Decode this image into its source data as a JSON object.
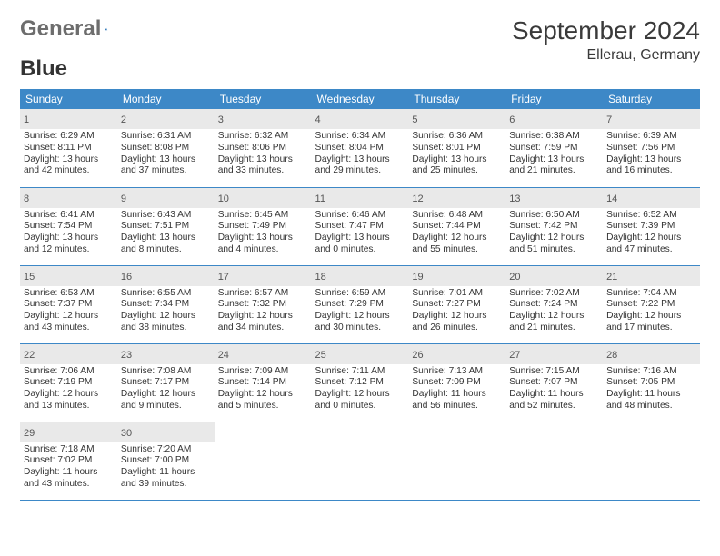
{
  "brand": {
    "part1": "General",
    "part2": "Blue"
  },
  "title": "September 2024",
  "location": "Ellerau, Germany",
  "colors": {
    "header_bg": "#3d88c7",
    "header_text": "#ffffff",
    "daynum_bg": "#e9e9e9",
    "border": "#3d88c7",
    "logo_gray": "#6d6d6d",
    "logo_blue": "#2f78b9",
    "page_bg": "#ffffff",
    "text": "#333333"
  },
  "fonts": {
    "body_pt": 10,
    "daynum_pt": 11,
    "head_pt": 12,
    "title_pt": 28,
    "loc_pt": 16
  },
  "weekdays": [
    "Sunday",
    "Monday",
    "Tuesday",
    "Wednesday",
    "Thursday",
    "Friday",
    "Saturday"
  ],
  "weeks": [
    [
      {
        "d": "1",
        "sr": "6:29 AM",
        "ss": "8:11 PM",
        "dl1": "Daylight: 13 hours",
        "dl2": "and 42 minutes."
      },
      {
        "d": "2",
        "sr": "6:31 AM",
        "ss": "8:08 PM",
        "dl1": "Daylight: 13 hours",
        "dl2": "and 37 minutes."
      },
      {
        "d": "3",
        "sr": "6:32 AM",
        "ss": "8:06 PM",
        "dl1": "Daylight: 13 hours",
        "dl2": "and 33 minutes."
      },
      {
        "d": "4",
        "sr": "6:34 AM",
        "ss": "8:04 PM",
        "dl1": "Daylight: 13 hours",
        "dl2": "and 29 minutes."
      },
      {
        "d": "5",
        "sr": "6:36 AM",
        "ss": "8:01 PM",
        "dl1": "Daylight: 13 hours",
        "dl2": "and 25 minutes."
      },
      {
        "d": "6",
        "sr": "6:38 AM",
        "ss": "7:59 PM",
        "dl1": "Daylight: 13 hours",
        "dl2": "and 21 minutes."
      },
      {
        "d": "7",
        "sr": "6:39 AM",
        "ss": "7:56 PM",
        "dl1": "Daylight: 13 hours",
        "dl2": "and 16 minutes."
      }
    ],
    [
      {
        "d": "8",
        "sr": "6:41 AM",
        "ss": "7:54 PM",
        "dl1": "Daylight: 13 hours",
        "dl2": "and 12 minutes."
      },
      {
        "d": "9",
        "sr": "6:43 AM",
        "ss": "7:51 PM",
        "dl1": "Daylight: 13 hours",
        "dl2": "and 8 minutes."
      },
      {
        "d": "10",
        "sr": "6:45 AM",
        "ss": "7:49 PM",
        "dl1": "Daylight: 13 hours",
        "dl2": "and 4 minutes."
      },
      {
        "d": "11",
        "sr": "6:46 AM",
        "ss": "7:47 PM",
        "dl1": "Daylight: 13 hours",
        "dl2": "and 0 minutes."
      },
      {
        "d": "12",
        "sr": "6:48 AM",
        "ss": "7:44 PM",
        "dl1": "Daylight: 12 hours",
        "dl2": "and 55 minutes."
      },
      {
        "d": "13",
        "sr": "6:50 AM",
        "ss": "7:42 PM",
        "dl1": "Daylight: 12 hours",
        "dl2": "and 51 minutes."
      },
      {
        "d": "14",
        "sr": "6:52 AM",
        "ss": "7:39 PM",
        "dl1": "Daylight: 12 hours",
        "dl2": "and 47 minutes."
      }
    ],
    [
      {
        "d": "15",
        "sr": "6:53 AM",
        "ss": "7:37 PM",
        "dl1": "Daylight: 12 hours",
        "dl2": "and 43 minutes."
      },
      {
        "d": "16",
        "sr": "6:55 AM",
        "ss": "7:34 PM",
        "dl1": "Daylight: 12 hours",
        "dl2": "and 38 minutes."
      },
      {
        "d": "17",
        "sr": "6:57 AM",
        "ss": "7:32 PM",
        "dl1": "Daylight: 12 hours",
        "dl2": "and 34 minutes."
      },
      {
        "d": "18",
        "sr": "6:59 AM",
        "ss": "7:29 PM",
        "dl1": "Daylight: 12 hours",
        "dl2": "and 30 minutes."
      },
      {
        "d": "19",
        "sr": "7:01 AM",
        "ss": "7:27 PM",
        "dl1": "Daylight: 12 hours",
        "dl2": "and 26 minutes."
      },
      {
        "d": "20",
        "sr": "7:02 AM",
        "ss": "7:24 PM",
        "dl1": "Daylight: 12 hours",
        "dl2": "and 21 minutes."
      },
      {
        "d": "21",
        "sr": "7:04 AM",
        "ss": "7:22 PM",
        "dl1": "Daylight: 12 hours",
        "dl2": "and 17 minutes."
      }
    ],
    [
      {
        "d": "22",
        "sr": "7:06 AM",
        "ss": "7:19 PM",
        "dl1": "Daylight: 12 hours",
        "dl2": "and 13 minutes."
      },
      {
        "d": "23",
        "sr": "7:08 AM",
        "ss": "7:17 PM",
        "dl1": "Daylight: 12 hours",
        "dl2": "and 9 minutes."
      },
      {
        "d": "24",
        "sr": "7:09 AM",
        "ss": "7:14 PM",
        "dl1": "Daylight: 12 hours",
        "dl2": "and 5 minutes."
      },
      {
        "d": "25",
        "sr": "7:11 AM",
        "ss": "7:12 PM",
        "dl1": "Daylight: 12 hours",
        "dl2": "and 0 minutes."
      },
      {
        "d": "26",
        "sr": "7:13 AM",
        "ss": "7:09 PM",
        "dl1": "Daylight: 11 hours",
        "dl2": "and 56 minutes."
      },
      {
        "d": "27",
        "sr": "7:15 AM",
        "ss": "7:07 PM",
        "dl1": "Daylight: 11 hours",
        "dl2": "and 52 minutes."
      },
      {
        "d": "28",
        "sr": "7:16 AM",
        "ss": "7:05 PM",
        "dl1": "Daylight: 11 hours",
        "dl2": "and 48 minutes."
      }
    ],
    [
      {
        "d": "29",
        "sr": "7:18 AM",
        "ss": "7:02 PM",
        "dl1": "Daylight: 11 hours",
        "dl2": "and 43 minutes."
      },
      {
        "d": "30",
        "sr": "7:20 AM",
        "ss": "7:00 PM",
        "dl1": "Daylight: 11 hours",
        "dl2": "and 39 minutes."
      },
      null,
      null,
      null,
      null,
      null
    ]
  ],
  "labels": {
    "sunrise": "Sunrise:",
    "sunset": "Sunset:"
  }
}
